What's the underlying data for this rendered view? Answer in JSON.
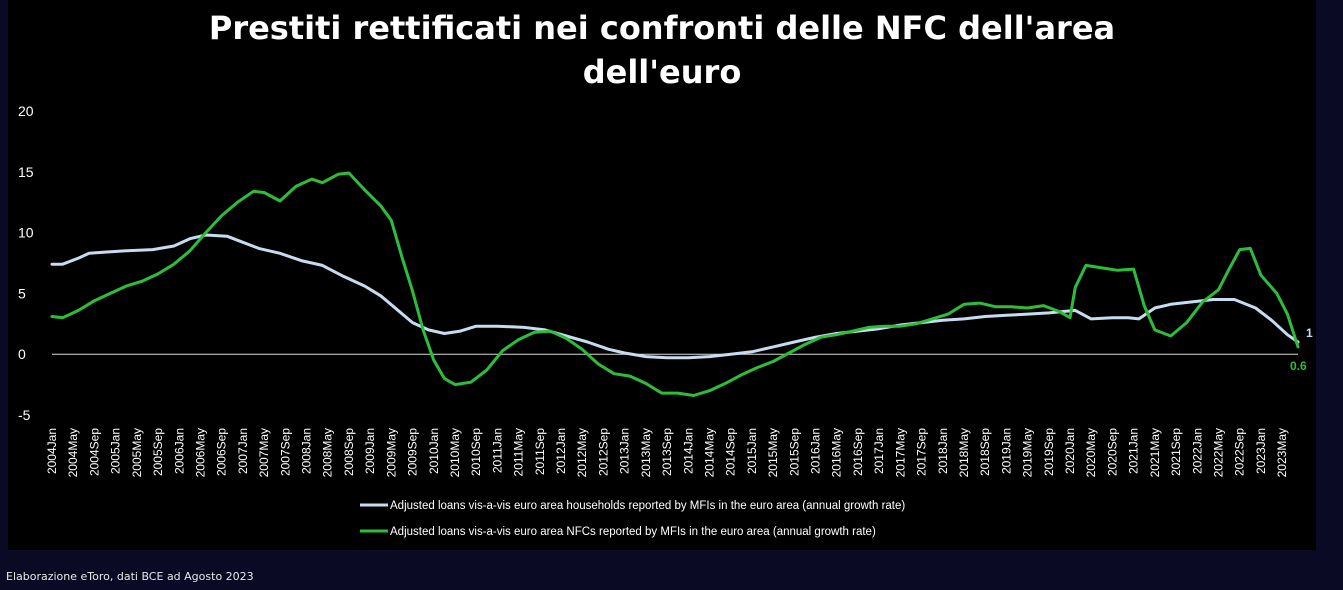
{
  "footer": {
    "source": "Elaborazione eToro, dati BCE ad Agosto 2023"
  },
  "colors": {
    "background": "#000000",
    "page": "#0a0a24",
    "households": "#c6dcf0",
    "nfc": "#2ebd3a"
  },
  "chart_data": {
    "type": "line",
    "title_lines": [
      "Prestiti rettificati nei confronti delle NFC dell'area",
      "dell'euro"
    ],
    "xlabel": "",
    "ylabel": "",
    "ylim": [
      -5,
      20
    ],
    "yticks": [
      "-5",
      "0",
      "5",
      "10",
      "15",
      "20"
    ],
    "grid": false,
    "legend_position": "bottom",
    "x_start": "2004-01",
    "x_end": "2023-08",
    "x_tick_labels": [
      "2004Jan",
      "2004May",
      "2004Sep",
      "2005Jan",
      "2005May",
      "2005Sep",
      "2006Jan",
      "2006May",
      "2006Sep",
      "2007Jan",
      "2007May",
      "2007Sep",
      "2008Jan",
      "2008May",
      "2008Sep",
      "2009Jan",
      "2009May",
      "2009Sep",
      "2010Jan",
      "2010May",
      "2010Sep",
      "2011Jan",
      "2011May",
      "2011Sep",
      "2012Jan",
      "2012May",
      "2012Sep",
      "2013Jan",
      "2013May",
      "2013Sep",
      "2014Jan",
      "2014May",
      "2014Sep",
      "2015Jan",
      "2015May",
      "2015Sep",
      "2016Jan",
      "2016May",
      "2016Sep",
      "2017Jan",
      "2017May",
      "2017Sep",
      "2018Jan",
      "2018May",
      "2018Sep",
      "2019Jan",
      "2019May",
      "2019Sep",
      "2020Jan",
      "2020May",
      "2020Sep",
      "2021Jan",
      "2021May",
      "2021Sep",
      "2022Jan",
      "2022May",
      "2022Sep",
      "2023Jan",
      "2023May"
    ],
    "series": [
      {
        "name": "Adjusted loans vis-a-vis euro area households reported by MFIs in the euro area (annual growth rate)",
        "color": "#c6dcf0",
        "end_label": "1",
        "points": [
          [
            "2004-01",
            7.4
          ],
          [
            "2004-03",
            7.4
          ],
          [
            "2004-06",
            7.9
          ],
          [
            "2004-08",
            8.3
          ],
          [
            "2004-11",
            8.4
          ],
          [
            "2005-03",
            8.5
          ],
          [
            "2005-08",
            8.6
          ],
          [
            "2005-12",
            8.9
          ],
          [
            "2006-03",
            9.5
          ],
          [
            "2006-06",
            9.8
          ],
          [
            "2006-10",
            9.7
          ],
          [
            "2007-01",
            9.2
          ],
          [
            "2007-04",
            8.7
          ],
          [
            "2007-08",
            8.3
          ],
          [
            "2007-12",
            7.7
          ],
          [
            "2008-04",
            7.3
          ],
          [
            "2008-08",
            6.4
          ],
          [
            "2008-12",
            5.6
          ],
          [
            "2009-03",
            4.8
          ],
          [
            "2009-06",
            3.7
          ],
          [
            "2009-09",
            2.6
          ],
          [
            "2009-12",
            2.0
          ],
          [
            "2010-03",
            1.7
          ],
          [
            "2010-06",
            1.9
          ],
          [
            "2010-09",
            2.3
          ],
          [
            "2011-01",
            2.3
          ],
          [
            "2011-06",
            2.2
          ],
          [
            "2011-10",
            2.0
          ],
          [
            "2012-02",
            1.5
          ],
          [
            "2012-06",
            1.0
          ],
          [
            "2012-10",
            0.4
          ],
          [
            "2013-01",
            0.1
          ],
          [
            "2013-05",
            -0.2
          ],
          [
            "2013-09",
            -0.3
          ],
          [
            "2014-01",
            -0.3
          ],
          [
            "2014-05",
            -0.2
          ],
          [
            "2014-09",
            0.0
          ],
          [
            "2015-01",
            0.2
          ],
          [
            "2015-05",
            0.6
          ],
          [
            "2015-09",
            1.0
          ],
          [
            "2016-01",
            1.4
          ],
          [
            "2016-05",
            1.7
          ],
          [
            "2016-09",
            1.9
          ],
          [
            "2017-01",
            2.1
          ],
          [
            "2017-05",
            2.4
          ],
          [
            "2017-09",
            2.6
          ],
          [
            "2018-01",
            2.8
          ],
          [
            "2018-05",
            2.9
          ],
          [
            "2018-09",
            3.1
          ],
          [
            "2019-01",
            3.2
          ],
          [
            "2019-05",
            3.3
          ],
          [
            "2019-09",
            3.4
          ],
          [
            "2020-02",
            3.6
          ],
          [
            "2020-05",
            2.9
          ],
          [
            "2020-09",
            3.0
          ],
          [
            "2020-12",
            3.0
          ],
          [
            "2021-02",
            2.9
          ],
          [
            "2021-05",
            3.8
          ],
          [
            "2021-08",
            4.1
          ],
          [
            "2021-12",
            4.3
          ],
          [
            "2022-04",
            4.5
          ],
          [
            "2022-08",
            4.5
          ],
          [
            "2022-12",
            3.8
          ],
          [
            "2023-03",
            2.8
          ],
          [
            "2023-06",
            1.6
          ],
          [
            "2023-08",
            1.0
          ]
        ]
      },
      {
        "name": "Adjusted loans vis-a-vis euro area NFCs reported by MFIs in the euro area (annual growth rate)",
        "color": "#2ebd3a",
        "end_label": "0.6",
        "points": [
          [
            "2004-01",
            3.1
          ],
          [
            "2004-03",
            3.0
          ],
          [
            "2004-06",
            3.6
          ],
          [
            "2004-09",
            4.4
          ],
          [
            "2004-12",
            5.0
          ],
          [
            "2005-03",
            5.6
          ],
          [
            "2005-06",
            6.0
          ],
          [
            "2005-09",
            6.6
          ],
          [
            "2005-12",
            7.4
          ],
          [
            "2006-03",
            8.5
          ],
          [
            "2006-06",
            10.0
          ],
          [
            "2006-09",
            11.4
          ],
          [
            "2006-12",
            12.5
          ],
          [
            "2007-03",
            13.4
          ],
          [
            "2007-05",
            13.3
          ],
          [
            "2007-08",
            12.6
          ],
          [
            "2007-11",
            13.8
          ],
          [
            "2008-02",
            14.4
          ],
          [
            "2008-04",
            14.1
          ],
          [
            "2008-07",
            14.8
          ],
          [
            "2008-09",
            14.9
          ],
          [
            "2008-12",
            13.5
          ],
          [
            "2009-03",
            12.2
          ],
          [
            "2009-05",
            11.0
          ],
          [
            "2009-07",
            8.0
          ],
          [
            "2009-09",
            5.2
          ],
          [
            "2009-11",
            2.0
          ],
          [
            "2010-01",
            -0.5
          ],
          [
            "2010-03",
            -2.0
          ],
          [
            "2010-05",
            -2.5
          ],
          [
            "2010-08",
            -2.3
          ],
          [
            "2010-11",
            -1.3
          ],
          [
            "2011-02",
            0.3
          ],
          [
            "2011-05",
            1.2
          ],
          [
            "2011-08",
            1.8
          ],
          [
            "2011-11",
            1.9
          ],
          [
            "2012-02",
            1.3
          ],
          [
            "2012-05",
            0.4
          ],
          [
            "2012-08",
            -0.8
          ],
          [
            "2012-11",
            -1.6
          ],
          [
            "2013-02",
            -1.8
          ],
          [
            "2013-05",
            -2.4
          ],
          [
            "2013-08",
            -3.2
          ],
          [
            "2013-11",
            -3.2
          ],
          [
            "2014-02",
            -3.4
          ],
          [
            "2014-05",
            -3.0
          ],
          [
            "2014-08",
            -2.4
          ],
          [
            "2014-11",
            -1.7
          ],
          [
            "2015-02",
            -1.1
          ],
          [
            "2015-05",
            -0.6
          ],
          [
            "2015-08",
            0.1
          ],
          [
            "2015-11",
            0.8
          ],
          [
            "2016-02",
            1.4
          ],
          [
            "2016-05",
            1.6
          ],
          [
            "2016-08",
            1.9
          ],
          [
            "2016-11",
            2.2
          ],
          [
            "2017-02",
            2.3
          ],
          [
            "2017-05",
            2.3
          ],
          [
            "2017-08",
            2.5
          ],
          [
            "2017-11",
            2.9
          ],
          [
            "2018-02",
            3.3
          ],
          [
            "2018-05",
            4.1
          ],
          [
            "2018-08",
            4.2
          ],
          [
            "2018-11",
            3.9
          ],
          [
            "2019-02",
            3.9
          ],
          [
            "2019-05",
            3.8
          ],
          [
            "2019-08",
            4.0
          ],
          [
            "2019-11",
            3.5
          ],
          [
            "2020-01",
            3.0
          ],
          [
            "2020-02",
            5.5
          ],
          [
            "2020-04",
            7.3
          ],
          [
            "2020-07",
            7.1
          ],
          [
            "2020-10",
            6.9
          ],
          [
            "2021-01",
            7.0
          ],
          [
            "2021-03",
            4.0
          ],
          [
            "2021-05",
            2.0
          ],
          [
            "2021-08",
            1.5
          ],
          [
            "2021-11",
            2.6
          ],
          [
            "2022-02",
            4.3
          ],
          [
            "2022-05",
            5.3
          ],
          [
            "2022-07",
            7.0
          ],
          [
            "2022-09",
            8.6
          ],
          [
            "2022-11",
            8.7
          ],
          [
            "2023-01",
            6.5
          ],
          [
            "2023-04",
            5.0
          ],
          [
            "2023-06",
            3.3
          ],
          [
            "2023-08",
            0.6
          ]
        ]
      }
    ]
  }
}
